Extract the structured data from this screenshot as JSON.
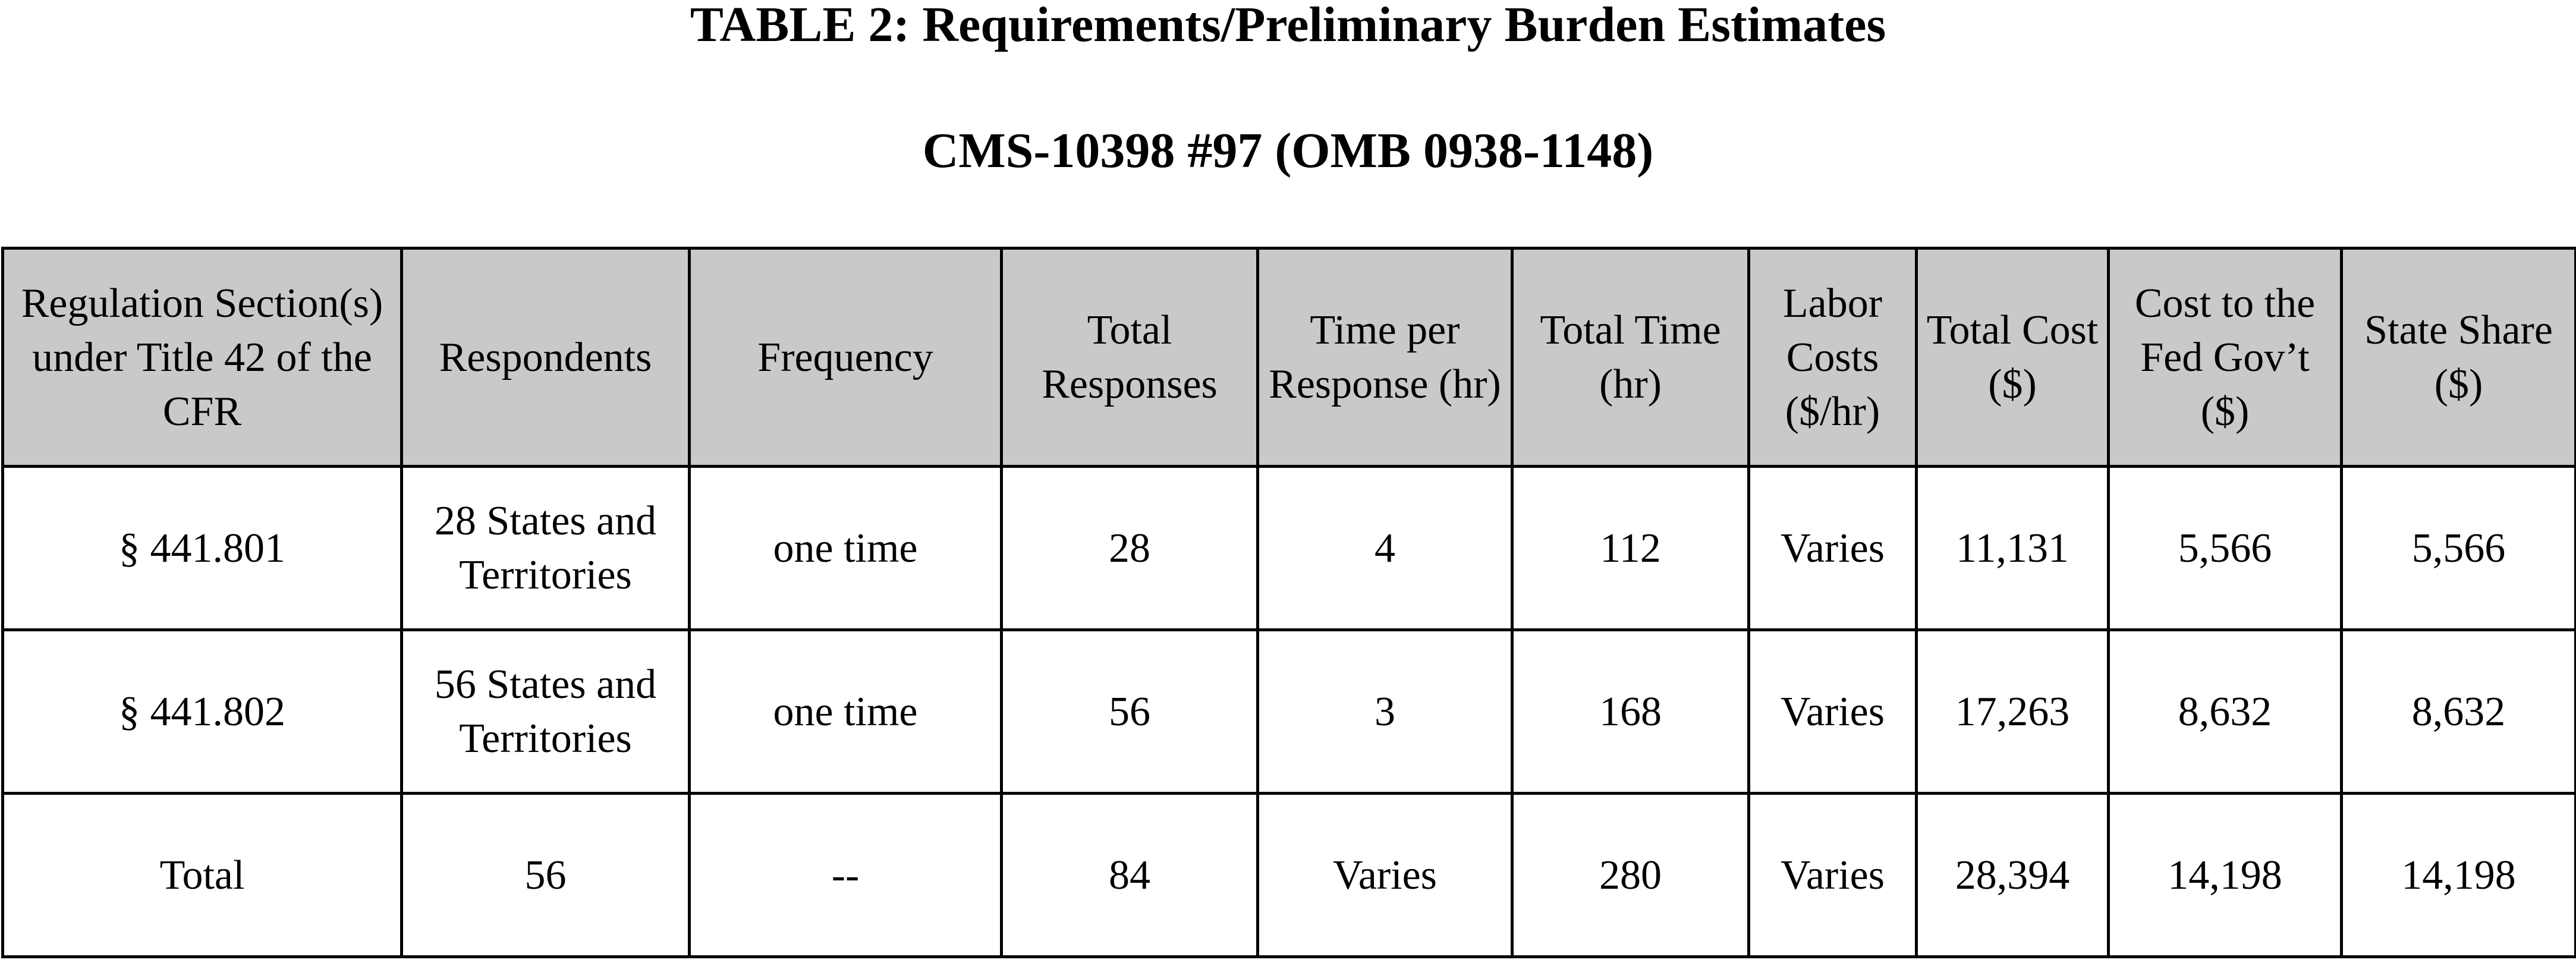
{
  "header": {
    "title": "TABLE 2:  Requirements/Preliminary Burden Estimates",
    "subtitle": "CMS-10398 #97 (OMB 0938-1148)"
  },
  "table": {
    "columns": [
      "Regulation Section(s) under Title 42 of the CFR",
      "Respondents",
      "Frequency",
      "Total Responses",
      "Time per Response (hr)",
      "Total Time (hr)",
      "Labor Costs ($/hr)",
      "Total Cost ($)",
      "Cost to the Fed Gov’t ($)",
      "State Share ($)"
    ],
    "rows": [
      [
        "§ 441.801",
        "28 States and Territories",
        "one time",
        "28",
        "4",
        "112",
        "Varies",
        "11,131",
        "5,566",
        "5,566"
      ],
      [
        "§ 441.802",
        "56 States and Territories",
        "one time",
        "56",
        "3",
        "168",
        "Varies",
        "17,263",
        "8,632",
        "8,632"
      ],
      [
        "Total",
        "56",
        "--",
        "84",
        "Varies",
        "280",
        "Varies",
        "28,394",
        "14,198",
        "14,198"
      ]
    ]
  }
}
